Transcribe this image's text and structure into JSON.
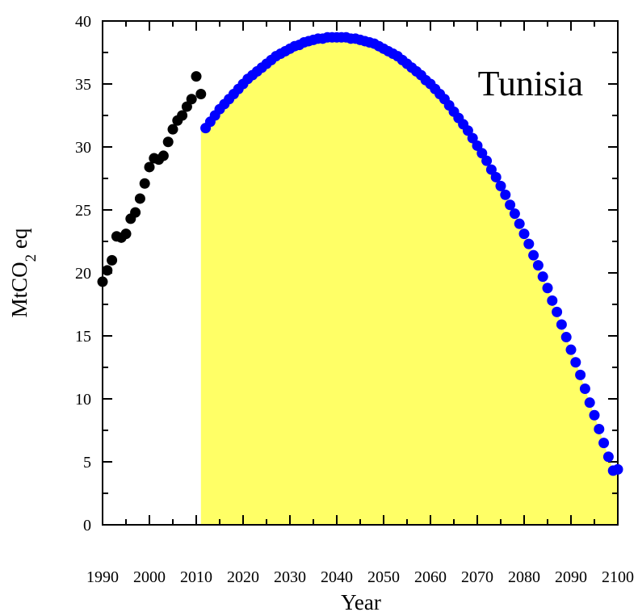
{
  "chart_data": {
    "type": "scatter",
    "title": "",
    "annotation": "Tunisia",
    "xlabel": "Year",
    "ylabel_main": "MtCO",
    "ylabel_sub": "2",
    "ylabel_suffix": " eq",
    "xlim": [
      1990,
      2100
    ],
    "ylim": [
      0,
      40
    ],
    "x_ticks": [
      "1990",
      "2000",
      "2010",
      "2020",
      "2030",
      "2040",
      "2050",
      "2060",
      "2070",
      "2080",
      "2090",
      "2100"
    ],
    "y_ticks": [
      "0",
      "5",
      "10",
      "15",
      "20",
      "25",
      "30",
      "35",
      "40"
    ],
    "grid": false,
    "shaded_region": {
      "color": "#ffff66",
      "x_start": 2011,
      "x_end": 2100
    },
    "series": [
      {
        "color": "#000000",
        "x": [
          1990,
          1991,
          1992,
          1993,
          1994,
          1995,
          1996,
          1997,
          1998,
          1999,
          2000,
          2001,
          2002,
          2003,
          2004,
          2005,
          2006,
          2007,
          2008,
          2009,
          2010,
          2011
        ],
        "y": [
          19.3,
          20.2,
          21.0,
          22.9,
          22.8,
          23.1,
          24.3,
          24.8,
          25.9,
          27.1,
          28.4,
          29.1,
          29.0,
          29.3,
          30.4,
          31.4,
          32.1,
          32.5,
          33.2,
          33.8,
          35.6,
          34.2
        ]
      },
      {
        "color": "#0000ff",
        "x": [
          2012,
          2013,
          2014,
          2015,
          2016,
          2017,
          2018,
          2019,
          2020,
          2021,
          2022,
          2023,
          2024,
          2025,
          2026,
          2027,
          2028,
          2029,
          2030,
          2031,
          2032,
          2033,
          2034,
          2035,
          2036,
          2037,
          2038,
          2039,
          2040,
          2041,
          2042,
          2043,
          2044,
          2045,
          2046,
          2047,
          2048,
          2049,
          2050,
          2051,
          2052,
          2053,
          2054,
          2055,
          2056,
          2057,
          2058,
          2059,
          2060,
          2061,
          2062,
          2063,
          2064,
          2065,
          2066,
          2067,
          2068,
          2069,
          2070,
          2071,
          2072,
          2073,
          2074,
          2075,
          2076,
          2077,
          2078,
          2079,
          2080,
          2081,
          2082,
          2083,
          2084,
          2085,
          2086,
          2087,
          2088,
          2089,
          2090,
          2091,
          2092,
          2093,
          2094,
          2095,
          2096,
          2097,
          2098,
          2099,
          2100
        ],
        "y": [
          31.5,
          32.0,
          32.5,
          33.0,
          33.4,
          33.8,
          34.2,
          34.6,
          35.0,
          35.4,
          35.7,
          36.0,
          36.3,
          36.6,
          36.9,
          37.2,
          37.4,
          37.6,
          37.8,
          38.0,
          38.1,
          38.3,
          38.4,
          38.5,
          38.6,
          38.6,
          38.7,
          38.7,
          38.7,
          38.7,
          38.7,
          38.6,
          38.6,
          38.5,
          38.4,
          38.3,
          38.2,
          38.0,
          37.8,
          37.6,
          37.4,
          37.2,
          36.9,
          36.6,
          36.3,
          36.0,
          35.7,
          35.3,
          35.0,
          34.6,
          34.2,
          33.8,
          33.3,
          32.8,
          32.3,
          31.8,
          31.3,
          30.7,
          30.1,
          29.5,
          28.9,
          28.2,
          27.6,
          26.9,
          26.2,
          25.4,
          24.7,
          23.9,
          23.1,
          22.3,
          21.4,
          20.6,
          19.7,
          18.8,
          17.8,
          16.9,
          15.9,
          14.9,
          13.9,
          12.9,
          11.9,
          10.8,
          9.7,
          8.7,
          7.6,
          6.5,
          5.4,
          4.3,
          4.4
        ]
      }
    ]
  }
}
